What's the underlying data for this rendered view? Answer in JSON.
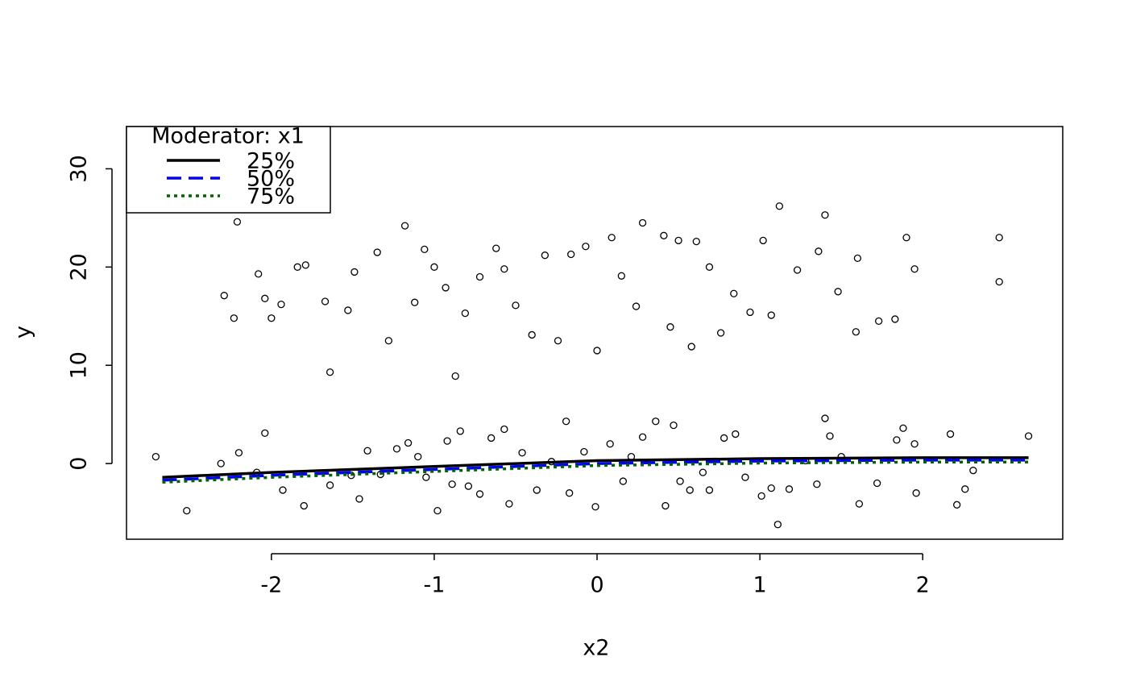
{
  "chart_data": {
    "type": "scatter",
    "x_label": "x2",
    "y_label": "y",
    "xlim": [
      -2.89,
      2.86
    ],
    "ylim": [
      -7.7,
      34.3
    ],
    "xticks": [
      -2,
      -1,
      0,
      1,
      2
    ],
    "yticks": [
      0,
      10,
      20,
      30
    ],
    "point_color": "#000000",
    "points": {
      "x": [
        -2.21,
        -2.29,
        -2.23,
        -2.08,
        -2.04,
        -2.0,
        -1.94,
        -1.84,
        -1.79,
        -1.64,
        -1.67,
        -1.53,
        -1.49,
        -1.35,
        -1.28,
        -1.18,
        -1.12,
        -1.06,
        -1.0,
        -0.93,
        -0.87,
        -0.81,
        -0.72,
        -0.62,
        -0.57,
        -0.5,
        -0.4,
        -0.32,
        -0.24,
        -0.16,
        -0.07,
        0,
        0.09,
        0.15,
        0.24,
        0.28,
        0.41,
        0.45,
        0.5,
        0.58,
        0.61,
        0.69,
        0.76,
        0.84,
        0.94,
        1.02,
        1.07,
        1.12,
        1.23,
        1.36,
        1.4,
        1.48,
        1.59,
        1.6,
        1.73,
        1.83,
        1.9,
        1.95,
        2.47,
        2.47,
        -2.71,
        -2.52,
        -2.31,
        -2.2,
        -2.09,
        -2.04,
        -1.93,
        -1.8,
        -1.64,
        -1.51,
        -1.46,
        -1.41,
        -1.33,
        -1.23,
        -1.16,
        -1.1,
        -1.05,
        -0.98,
        -0.92,
        -0.89,
        -0.84,
        -0.79,
        -0.72,
        -0.65,
        -0.57,
        -0.54,
        -0.46,
        -0.37,
        -0.28,
        -0.19,
        -0.17,
        -0.08,
        -0.01,
        0.08,
        0.16,
        0.21,
        0.28,
        0.36,
        0.42,
        0.47,
        0.51,
        0.57,
        0.65,
        0.69,
        0.78,
        0.85,
        0.91,
        1.01,
        1.07,
        1.11,
        1.18,
        1.28,
        1.35,
        1.4,
        1.43,
        1.5,
        1.61,
        1.72,
        1.84,
        1.88,
        1.95,
        1.96,
        2.17,
        2.21,
        2.26,
        2.31,
        2.65
      ],
      "y": [
        24.6,
        17.1,
        14.8,
        19.3,
        16.8,
        14.8,
        16.2,
        20,
        20.2,
        9.3,
        16.5,
        15.6,
        19.5,
        21.5,
        12.5,
        24.2,
        16.4,
        21.8,
        20,
        17.9,
        8.9,
        15.3,
        19,
        21.9,
        19.8,
        16.1,
        13.1,
        21.2,
        12.5,
        21.3,
        22.1,
        11.5,
        23,
        19.1,
        16,
        24.5,
        23.2,
        13.9,
        22.7,
        11.9,
        22.6,
        20,
        13.3,
        17.3,
        15.4,
        22.7,
        15.1,
        26.2,
        19.7,
        21.6,
        25.3,
        17.5,
        13.4,
        20.9,
        14.5,
        14.7,
        23,
        19.8,
        23,
        18.5,
        0.7,
        -4.8,
        0,
        1.1,
        -0.9,
        3.1,
        -2.7,
        -4.3,
        -2.2,
        -1.2,
        -3.6,
        1.3,
        -1.1,
        1.5,
        2.1,
        0.7,
        -1.4,
        -4.8,
        2.3,
        -2.1,
        3.3,
        -2.3,
        -3.1,
        2.6,
        3.5,
        -4.1,
        1.1,
        -2.7,
        0.2,
        4.3,
        -3,
        1.2,
        -4.4,
        2,
        -1.8,
        0.7,
        2.7,
        4.3,
        -4.3,
        3.9,
        -1.8,
        -2.7,
        -0.9,
        -2.7,
        2.6,
        3,
        -1.4,
        -3.3,
        -2.5,
        -6.2,
        -2.6,
        0.3,
        -2.1,
        4.6,
        2.8,
        0.7,
        -4.1,
        -2,
        2.4,
        3.6,
        2,
        -3,
        3,
        -4.2,
        -2.6,
        -0.7,
        2.8
      ]
    },
    "legend": {
      "title": "Moderator: x1",
      "position": "top-left"
    },
    "series": [
      {
        "name": "25%",
        "color": "#000000",
        "style": "solid",
        "x": [
          -2.67,
          -2,
          -1,
          0,
          1,
          2,
          2.65
        ],
        "values": [
          -1.4,
          -0.9,
          -0.3,
          0.3,
          0.5,
          0.6,
          0.6
        ]
      },
      {
        "name": "50%",
        "color": "#0000ff",
        "style": "dashed",
        "x": [
          -2.67,
          -2,
          -1,
          0,
          1,
          2,
          2.65
        ],
        "values": [
          -1.7,
          -1.2,
          -0.6,
          0,
          0.25,
          0.35,
          0.35
        ]
      },
      {
        "name": "75%",
        "color": "#006400",
        "style": "dotted",
        "x": [
          -2.67,
          -2,
          -1,
          0,
          1,
          2,
          2.65
        ],
        "values": [
          -1.9,
          -1.4,
          -0.8,
          -0.2,
          0.05,
          0.15,
          0.15
        ]
      }
    ]
  }
}
